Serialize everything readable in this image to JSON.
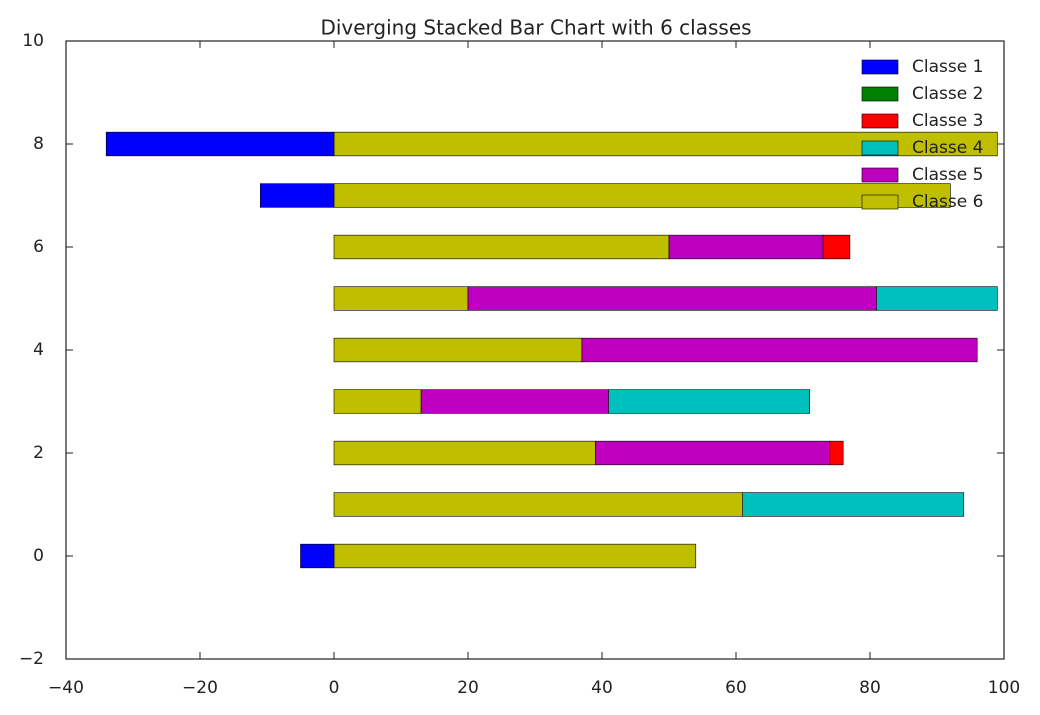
{
  "chart_data": {
    "type": "diverging_stacked_barh",
    "title": "Diverging Stacked Bar Chart with 6 classes",
    "y": [
      0,
      1,
      2,
      3,
      4,
      5,
      6,
      7,
      8
    ],
    "series": [
      {
        "name": "Classe 1",
        "color": "#0000ff",
        "values": [
          -5,
          0,
          0,
          0,
          0,
          0,
          0,
          -11,
          -34
        ]
      },
      {
        "name": "Classe 2",
        "color": "#008000",
        "values": [
          0,
          0,
          0,
          0,
          0,
          0,
          0,
          0,
          0
        ]
      },
      {
        "name": "Classe 3",
        "color": "#ff0000",
        "values": [
          0,
          0,
          2,
          0,
          0,
          0,
          4,
          0,
          0
        ]
      },
      {
        "name": "Classe 4",
        "color": "#00bfbf",
        "values": [
          0,
          33,
          0,
          30,
          0,
          18,
          0,
          0,
          0
        ]
      },
      {
        "name": "Classe 5",
        "color": "#bf00bf",
        "values": [
          0,
          0,
          35,
          28,
          59,
          61,
          23,
          0,
          0
        ]
      },
      {
        "name": "Classe 6",
        "color": "#bfbf00",
        "values": [
          54,
          61,
          39,
          13,
          37,
          20,
          50,
          92,
          99
        ]
      }
    ],
    "xlim": [
      -40,
      100
    ],
    "xticks": [
      {
        "value": -40,
        "label": "−40"
      },
      {
        "value": -20,
        "label": "−20"
      },
      0,
      20,
      40,
      60,
      80,
      100
    ],
    "ylim": [
      -2,
      10
    ],
    "yticks": [
      {
        "value": -2,
        "label": "−2"
      },
      0,
      2,
      4,
      6,
      8,
      10
    ],
    "legend": "upper right"
  }
}
